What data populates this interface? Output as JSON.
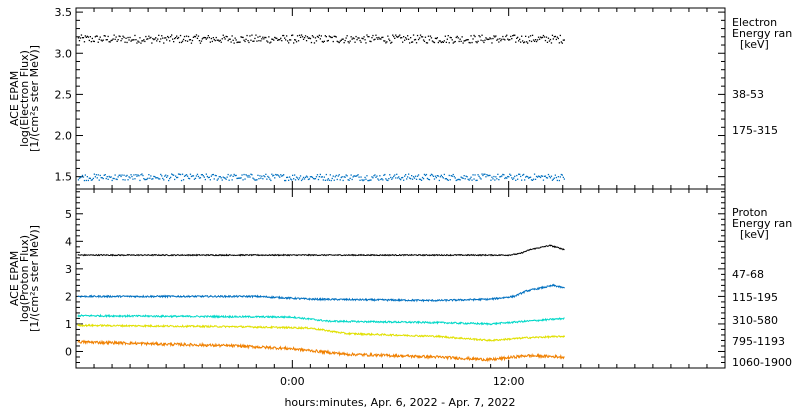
{
  "footer": {
    "xlabel": "hours:minutes, Apr.  6, 2022 - Apr.  7, 2022"
  },
  "x_ticks": [
    "0:00",
    "12:00"
  ],
  "chart_data": [
    {
      "type": "scatter",
      "ylabel": [
        "ACE EPAM",
        "log(Electron Flux)",
        "[1/(cm²s ster MeV)]"
      ],
      "ylim": [
        1.35,
        3.55
      ],
      "yticks": [
        "1.5",
        "2.0",
        "2.5",
        "3.0",
        "3.5"
      ],
      "legend_title": [
        "Electron",
        "Energy ran",
        "[keV]"
      ],
      "x_range_hours": [
        -12,
        24
      ],
      "data_end_hours": 15.1,
      "series": [
        {
          "name": "38-53",
          "color": "#000000",
          "level": 3.18,
          "noise": 0.05,
          "trend": []
        },
        {
          "name": "175-315",
          "color": "#0070c0",
          "level": 1.5,
          "noise": 0.04,
          "trend": []
        }
      ]
    },
    {
      "type": "line",
      "ylabel": [
        "ACE EPAM",
        "log(Proton Flux)",
        "[1/(cm²s ster MeV)]"
      ],
      "ylim": [
        -0.6,
        5.9
      ],
      "yticks": [
        "0",
        "1",
        "2",
        "3",
        "4",
        "5"
      ],
      "legend_title": [
        "Proton",
        "Energy ran",
        "[keV]"
      ],
      "x_range_hours": [
        -12,
        24
      ],
      "data_end_hours": 15.1,
      "series": [
        {
          "name": "47-68",
          "color": "#000000",
          "level": 3.5,
          "noise": 0.02,
          "trend": [
            [
              -12,
              3.5
            ],
            [
              12,
              3.5
            ],
            [
              12.6,
              3.55
            ],
            [
              13.2,
              3.7
            ],
            [
              14.3,
              3.85
            ],
            [
              15.1,
              3.7
            ]
          ]
        },
        {
          "name": "115-195",
          "color": "#0070c0",
          "level": 2.0,
          "noise": 0.03,
          "trend": [
            [
              -12,
              2.0
            ],
            [
              -2,
              2.0
            ],
            [
              1,
              1.9
            ],
            [
              8,
              1.85
            ],
            [
              11,
              1.9
            ],
            [
              12.3,
              2.0
            ],
            [
              13,
              2.2
            ],
            [
              14.5,
              2.4
            ],
            [
              15.1,
              2.3
            ]
          ]
        },
        {
          "name": "310-580",
          "color": "#00d8c8",
          "level": 1.3,
          "noise": 0.03,
          "trend": [
            [
              -12,
              1.3
            ],
            [
              0,
              1.25
            ],
            [
              2,
              1.1
            ],
            [
              8,
              1.05
            ],
            [
              11,
              1.0
            ],
            [
              13,
              1.1
            ],
            [
              15.1,
              1.2
            ]
          ]
        },
        {
          "name": "795-1193",
          "color": "#e0e000",
          "level": 0.9,
          "noise": 0.03,
          "trend": [
            [
              -12,
              0.95
            ],
            [
              -3,
              0.9
            ],
            [
              1,
              0.85
            ],
            [
              3,
              0.65
            ],
            [
              8,
              0.55
            ],
            [
              11,
              0.4
            ],
            [
              13,
              0.5
            ],
            [
              15.1,
              0.55
            ]
          ]
        },
        {
          "name": "1060-1900",
          "color": "#f08000",
          "level": 0.35,
          "noise": 0.05,
          "trend": [
            [
              -12,
              0.35
            ],
            [
              -3,
              0.2
            ],
            [
              0,
              0.1
            ],
            [
              3,
              -0.1
            ],
            [
              8,
              -0.2
            ],
            [
              11,
              -0.3
            ],
            [
              13,
              -0.15
            ],
            [
              15.1,
              -0.2
            ]
          ]
        }
      ]
    }
  ]
}
